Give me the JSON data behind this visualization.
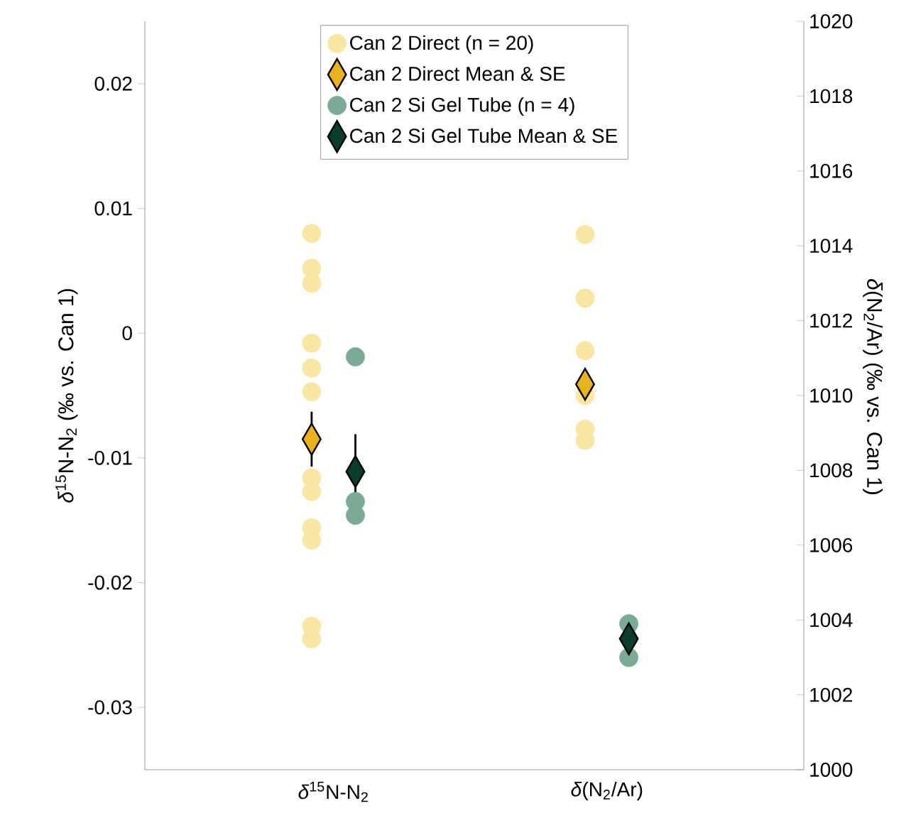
{
  "chart_data": {
    "type": "scatter",
    "categories": [
      "*δ*$^{15}$N-N$_{2}$",
      "*δ*(N$_{2}$/Ar)"
    ],
    "ylabel": "*δ*$^{15}$N-N$_{2}$ (‰ vs. Can 1)",
    "y2label": "*δ*(N$_{2}$/Ar) (‰ vs. Can 1)",
    "ylim": [
      -0.035,
      0.025
    ],
    "yticks": [
      -0.03,
      -0.02,
      -0.01,
      0,
      0.01,
      0.02
    ],
    "y2lim": [
      1000,
      1020
    ],
    "y2ticks": [
      1000,
      1002,
      1004,
      1006,
      1008,
      1010,
      1012,
      1014,
      1016,
      1018,
      1020
    ],
    "legend": "top",
    "grid": false,
    "series": [
      {
        "name": "Can 2 Direct (n = 20)",
        "marker": "circle",
        "color": "#f8e6a2",
        "x": [
          "*δ*$^{15}$N-N$_{2}$",
          "*δ*$^{15}$N-N$_{2}$",
          "*δ*$^{15}$N-N$_{2}$",
          "*δ*$^{15}$N-N$_{2}$",
          "*δ*$^{15}$N-N$_{2}$",
          "*δ*$^{15}$N-N$_{2}$",
          "*δ*$^{15}$N-N$_{2}$",
          "*δ*$^{15}$N-N$_{2}$",
          "*δ*$^{15}$N-N$_{2}$",
          "*δ*$^{15}$N-N$_{2}$",
          "*δ*$^{15}$N-N$_{2}$",
          "*δ*$^{15}$N-N$_{2}$"
        ],
        "values": [
          0.008,
          0.0052,
          0.004,
          -0.0008,
          -0.0028,
          -0.0047,
          -0.0116,
          -0.0127,
          -0.0156,
          -0.0166,
          -0.0235,
          -0.0245
        ]
      },
      {
        "name": "Can 2 Direct Mean & SE",
        "marker": "diamond",
        "color": "#e9b21c",
        "x": [
          "*δ*$^{15}$N-N$_{2}$"
        ],
        "values": [
          -0.0085
        ],
        "errors": [
          0.0022
        ]
      },
      {
        "name": "Can 2 Si Gel Tube (n = 4)",
        "marker": "circle",
        "color": "#7aab96",
        "x": [
          "*δ*$^{15}$N-N$_{2}$",
          "*δ*$^{15}$N-N$_{2}$",
          "*δ*$^{15}$N-N$_{2}$",
          "*δ*$^{15}$N-N$_{2}$"
        ],
        "values": [
          -0.0019,
          -0.0135,
          null,
          -0.0146
        ]
      },
      {
        "name": "Can 2 Si Gel Tube Mean & SE",
        "marker": "diamond",
        "color": "#0b3d2e",
        "x": [
          "*δ*$^{15}$N-N$_{2}$"
        ],
        "values": [
          -0.0111
        ],
        "errors": [
          0.003
        ]
      },
      {
        "axis": "y2",
        "marker": "circle",
        "color": "#f8e6a2",
        "x": [
          "*δ*(N$_{2}$/Ar)",
          "*δ*(N$_{2}$/Ar)",
          "*δ*(N$_{2}$/Ar)",
          "*δ*(N$_{2}$/Ar)",
          "*δ*(N$_{2}$/Ar)",
          "*δ*(N$_{2}$/Ar)",
          "*δ*(N$_{2}$/Ar)"
        ],
        "values": [
          1014.3,
          1012.6,
          1011.2,
          1010.0,
          null,
          1009.1,
          1008.8
        ]
      },
      {
        "axis": "y2",
        "marker": "diamond",
        "color": "#e9b21c",
        "x": [
          "*δ*(N$_{2}$/Ar)"
        ],
        "values": [
          1010.3
        ],
        "errors": [
          0.2
        ]
      },
      {
        "axis": "y2",
        "marker": "circle",
        "color": "#7aab96",
        "x": [
          "*δ*(N$_{2}$/Ar)",
          "*δ*(N$_{2}$/Ar)",
          "*δ*(N$_{2}$/Ar)",
          "*δ*(N$_{2}$/Ar)"
        ],
        "values": [
          1003.9,
          null,
          null,
          1003.0
        ]
      },
      {
        "axis": "y2",
        "marker": "diamond",
        "color": "#0b3d2e",
        "x": [
          "*δ*(N$_{2}$/Ar)"
        ],
        "values": [
          1003.5
        ],
        "errors": [
          0.3
        ]
      }
    ]
  }
}
